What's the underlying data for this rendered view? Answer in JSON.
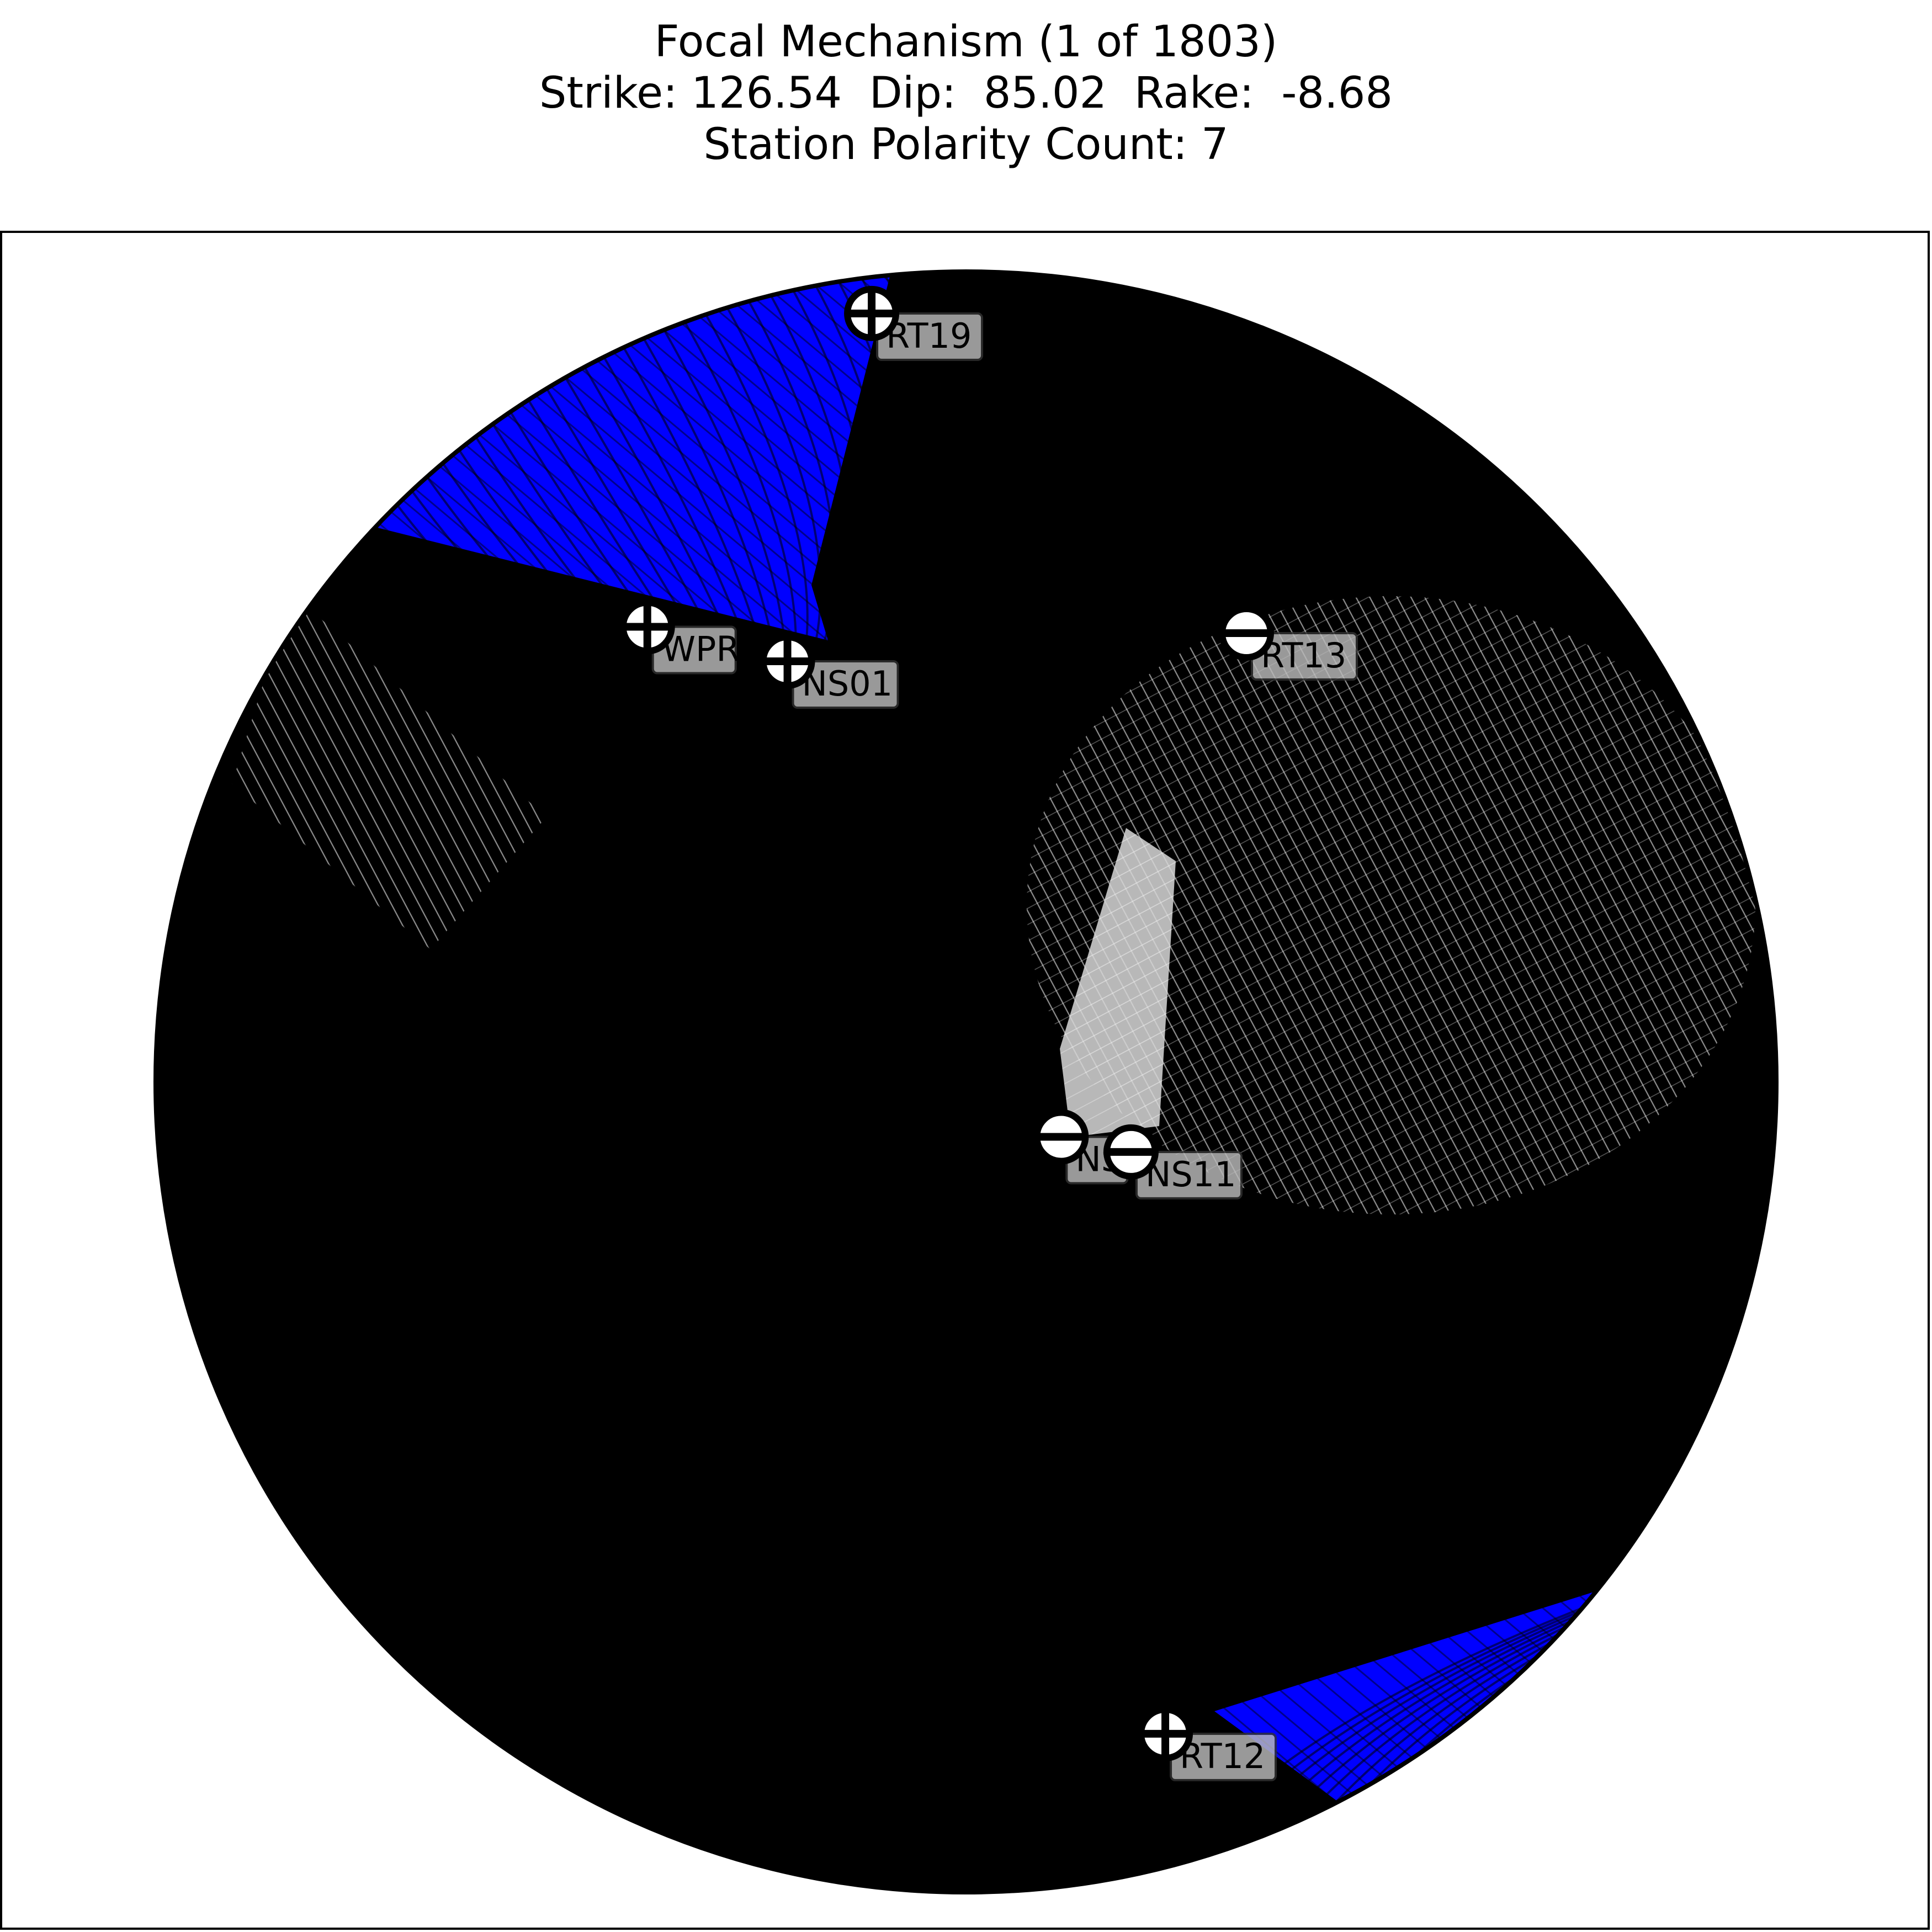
{
  "figure": {
    "title_lines": [
      "Focal Mechanism (1 of 1803)",
      "Strike: 126.54  Dip:  85.02  Rake:  -8.68",
      "Station Polarity Count: 7"
    ]
  },
  "colors": {
    "compression": "#0000ff",
    "dilatation": "#ffffff",
    "nodal_line": "#000000",
    "label_box": "#bbbbbb"
  },
  "stations": [
    {
      "name": "RT19",
      "polarity": "+",
      "azimuth_deg": 353,
      "takeoff_deg": 85
    },
    {
      "name": "WPR",
      "polarity": "+",
      "azimuth_deg": 325,
      "takeoff_deg": 58
    },
    {
      "name": "NS01",
      "polarity": "+",
      "azimuth_deg": 337,
      "takeoff_deg": 47
    },
    {
      "name": "RT13",
      "polarity": "-",
      "azimuth_deg": 32,
      "takeoff_deg": 55
    },
    {
      "name": "NS",
      "polarity": "-",
      "azimuth_deg": 120,
      "takeoff_deg": 11
    },
    {
      "name": "NS11",
      "polarity": "-",
      "azimuth_deg": 113,
      "takeoff_deg": 18
    },
    {
      "name": "RT12",
      "polarity": "+",
      "azimuth_deg": 163,
      "takeoff_deg": 73
    }
  ]
}
